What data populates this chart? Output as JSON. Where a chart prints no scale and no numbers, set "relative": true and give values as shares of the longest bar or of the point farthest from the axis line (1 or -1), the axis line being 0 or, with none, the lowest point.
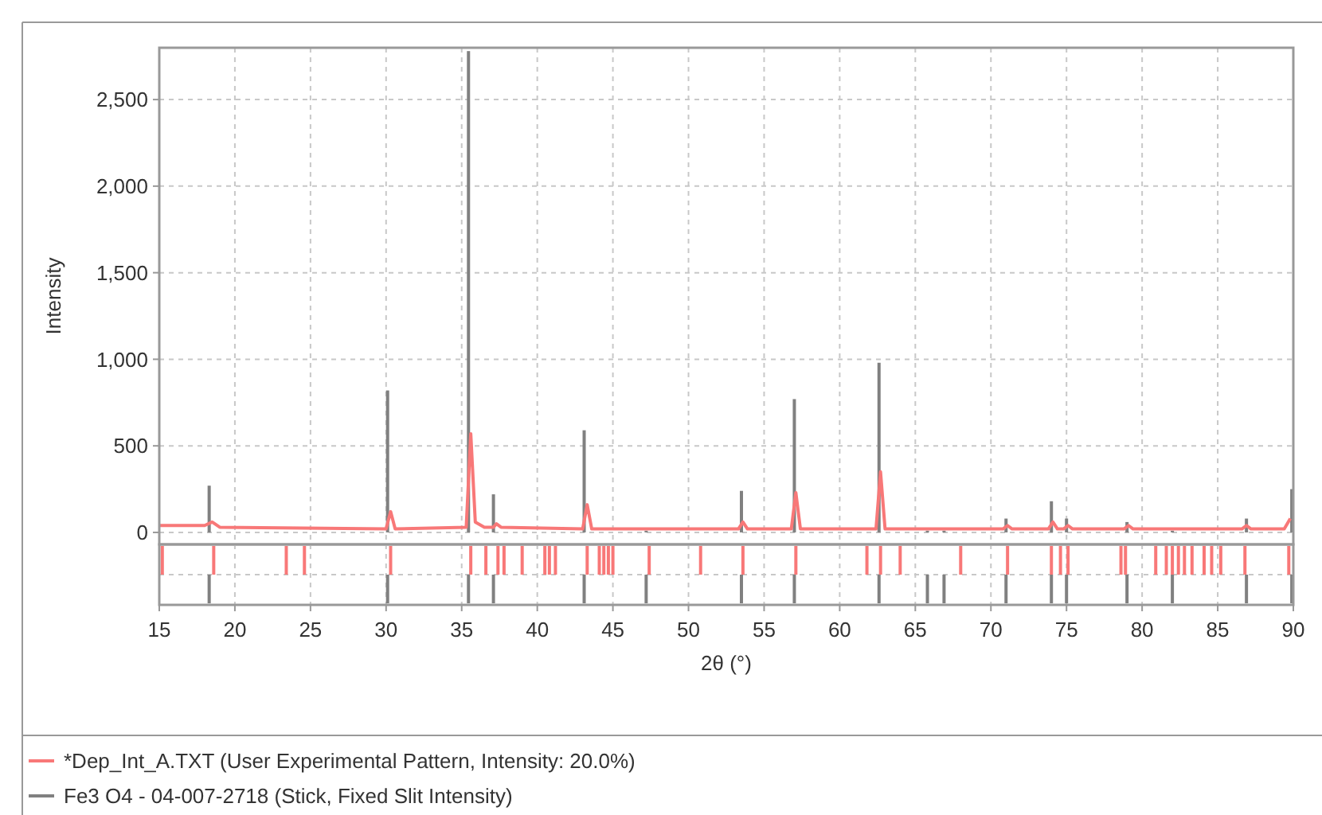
{
  "chart_data": [
    {
      "type": "line",
      "ylabel": "Intensity",
      "xlabel": "2θ (°)",
      "xlim": [
        15,
        90
      ],
      "ylim": [
        -60,
        2790
      ],
      "xticks": [
        15,
        20,
        25,
        30,
        35,
        40,
        45,
        50,
        55,
        60,
        65,
        70,
        75,
        80,
        85,
        90
      ],
      "yticks": [
        0,
        500,
        {
          "value": 1000,
          "label": "1,000"
        },
        {
          "value": 1500,
          "label": "1,500"
        },
        {
          "value": 2000,
          "label": "2,000"
        },
        {
          "value": 2500,
          "label": "2,500"
        }
      ],
      "grid": true,
      "legend": "bottom",
      "series": [
        {
          "name": "Fe3 O4 - 04-007-2718 (Stick, Fixed Slit Intensity)",
          "type": "bar",
          "color": "#808080",
          "x": [
            18.3,
            30.1,
            35.45,
            37.1,
            43.1,
            47.2,
            53.5,
            57.0,
            62.6,
            65.8,
            66.9,
            71.0,
            74.0,
            75.0,
            79.0,
            82.0,
            86.9,
            89.9
          ],
          "values": [
            270,
            820,
            2780,
            220,
            590,
            10,
            240,
            770,
            980,
            10,
            10,
            80,
            180,
            80,
            60,
            10,
            80,
            250
          ]
        },
        {
          "name": "*Dep_Int_A.TXT (User Experimental Pattern, Intensity: 20.0%)",
          "type": "line",
          "color": "#f87878",
          "x": [
            15,
            18.0,
            18.5,
            19.0,
            30.0,
            30.3,
            30.6,
            35.3,
            35.6,
            35.9,
            36.5,
            37.1,
            37.3,
            37.6,
            43.0,
            43.3,
            43.6,
            53.3,
            53.6,
            53.9,
            56.8,
            57.1,
            57.4,
            62.4,
            62.7,
            63.0,
            70.8,
            71.1,
            71.4,
            73.8,
            74.1,
            74.4,
            74.8,
            75.1,
            75.4,
            78.8,
            79.1,
            79.4,
            86.6,
            86.9,
            87.2,
            89.4,
            89.8
          ],
          "values": [
            40,
            40,
            60,
            30,
            20,
            120,
            20,
            30,
            570,
            60,
            30,
            30,
            50,
            30,
            20,
            160,
            20,
            20,
            60,
            20,
            20,
            230,
            20,
            20,
            350,
            20,
            20,
            40,
            20,
            20,
            60,
            20,
            20,
            40,
            20,
            20,
            40,
            20,
            20,
            40,
            20,
            20,
            80
          ]
        }
      ]
    },
    {
      "type": "bar",
      "relative": true,
      "xlim": [
        15,
        90
      ],
      "grid": true,
      "series": [
        {
          "color": "#f87878",
          "x": [
            15.2,
            18.6,
            23.4,
            24.6,
            30.3,
            35.6,
            36.6,
            37.4,
            37.8,
            39.0,
            40.5,
            40.8,
            41.2,
            43.3,
            44.1,
            44.4,
            44.7,
            45.0,
            47.4,
            50.8,
            53.6,
            57.1,
            61.8,
            62.7,
            64.0,
            68.0,
            71.1,
            74.0,
            74.6,
            75.1,
            78.6,
            78.9,
            80.9,
            81.6,
            82.0,
            82.4,
            82.8,
            83.3,
            84.1,
            84.6,
            85.2,
            86.8,
            89.7
          ],
          "values": [
            1,
            1,
            1,
            1,
            1,
            1,
            1,
            1,
            1,
            1,
            1,
            1,
            1,
            1,
            1,
            1,
            1,
            1,
            1,
            1,
            1,
            1,
            1,
            1,
            1,
            1,
            1,
            1,
            1,
            1,
            1,
            1,
            1,
            1,
            1,
            1,
            1,
            1,
            1,
            1,
            1,
            1,
            1
          ]
        },
        {
          "color": "#808080",
          "x": [
            18.3,
            30.1,
            35.45,
            37.1,
            43.1,
            47.2,
            53.5,
            57.0,
            62.6,
            65.8,
            66.9,
            71.0,
            74.0,
            75.0,
            79.0,
            82.0,
            86.9,
            89.9
          ],
          "values": [
            -1,
            -1,
            -1,
            -1,
            -1,
            -1,
            -1,
            -1,
            -1,
            -1,
            -1,
            -1,
            -1,
            -1,
            -1,
            -1,
            -1,
            -1
          ]
        }
      ]
    }
  ]
}
